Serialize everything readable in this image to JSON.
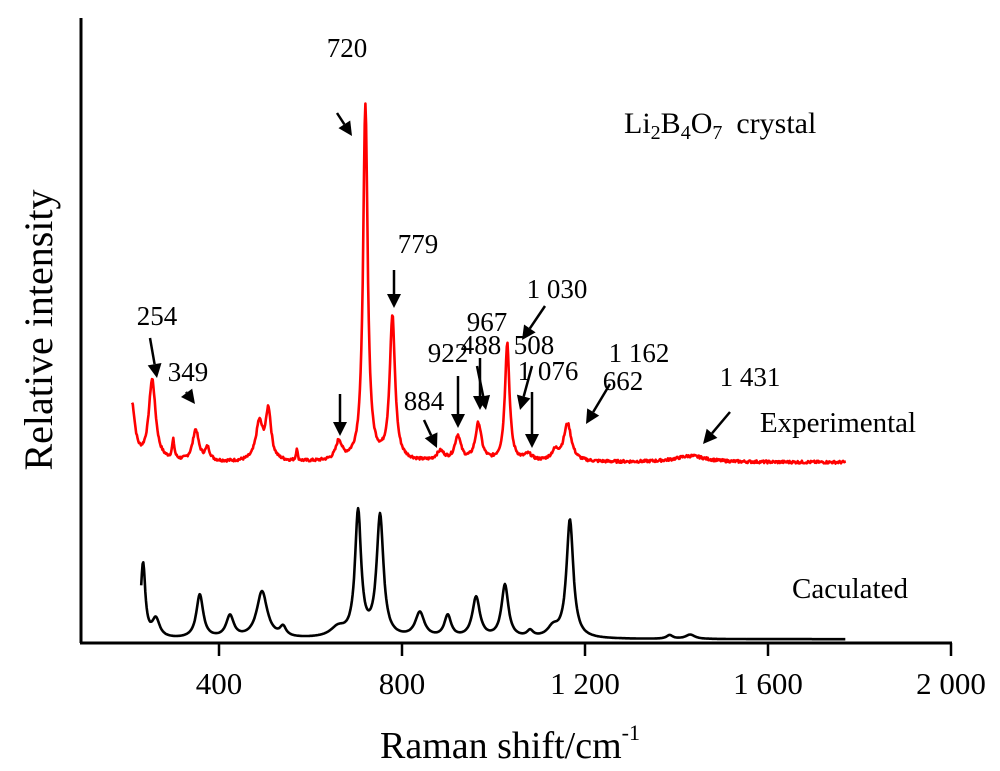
{
  "chart_data": {
    "type": "line",
    "title": "",
    "inset_label": {
      "main": "Li",
      "parts": [
        [
          "Li",
          ""
        ],
        [
          "B",
          "2"
        ],
        [
          "O",
          "4"
        ],
        [
          "",
          "7"
        ]
      ],
      "suffix": "crystal",
      "full": "Li2B4O7 crystal"
    },
    "xlabel": "Raman shift/cm",
    "xlabel_sup": "-1",
    "ylabel": "Relative intensity",
    "xlim": [
      100,
      2000
    ],
    "ylim": [
      0,
      100
    ],
    "xticks": [
      400,
      800,
      1200,
      1600,
      2000
    ],
    "xtick_labels": [
      "400",
      "800",
      "1 200",
      "1 600",
      "2 000"
    ],
    "grid": false,
    "series": [
      {
        "name": "Experimental",
        "color": "#ff0000",
        "range": [
          210,
          1770
        ],
        "baseline": 29,
        "peaks": [
          [
            210,
            9,
            8
          ],
          [
            254,
            13,
            9
          ],
          [
            300,
            3,
            3
          ],
          [
            349,
            5,
            8
          ],
          [
            375,
            2,
            6
          ],
          [
            488,
            6,
            9
          ],
          [
            508,
            8,
            7
          ],
          [
            570,
            2,
            2
          ],
          [
            662,
            3,
            8
          ],
          [
            720,
            57,
            6
          ],
          [
            779,
            23,
            7
          ],
          [
            884,
            1.5,
            10
          ],
          [
            922,
            4,
            8
          ],
          [
            967,
            6,
            8
          ],
          [
            1030,
            19,
            6
          ],
          [
            1076,
            1,
            10
          ],
          [
            1135,
            1.5,
            10
          ],
          [
            1162,
            6,
            10
          ],
          [
            1431,
            1,
            40
          ]
        ]
      },
      {
        "name": "Caculated",
        "color": "#000000",
        "range": [
          230,
          1770
        ],
        "baseline": 0.6,
        "peaks": [
          [
            234,
            12,
            6
          ],
          [
            262,
            3,
            10
          ],
          [
            358,
            7,
            9
          ],
          [
            424,
            3.5,
            10
          ],
          [
            494,
            7.5,
            14
          ],
          [
            540,
            1.5,
            8
          ],
          [
            660,
            1.5,
            20
          ],
          [
            704,
            20,
            8
          ],
          [
            752,
            19.5,
            9
          ],
          [
            839,
            4,
            12
          ],
          [
            900,
            3.5,
            9
          ],
          [
            962,
            6.5,
            10
          ],
          [
            1025,
            8.5,
            9
          ],
          [
            1080,
            1,
            8
          ],
          [
            1130,
            1.5,
            14
          ],
          [
            1167,
            19,
            9
          ],
          [
            1385,
            0.6,
            8
          ],
          [
            1430,
            0.7,
            12
          ]
        ]
      }
    ],
    "annotations": [
      "254",
      "349",
      "488",
      "508",
      "662",
      "720",
      "779",
      "884",
      "922",
      "967",
      "1 030",
      "1 076",
      "1 162",
      "1 431"
    ]
  }
}
